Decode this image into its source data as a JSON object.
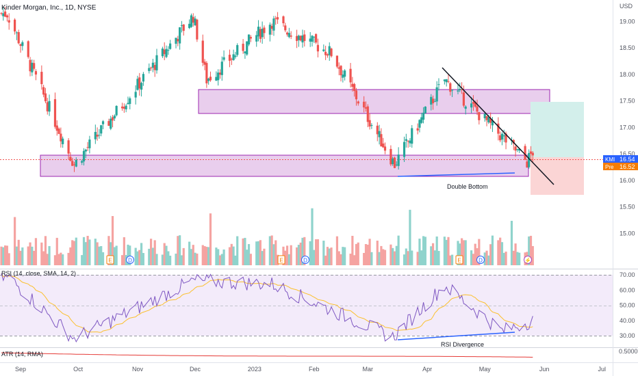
{
  "header": {
    "title": "Kinder Morgan, Inc., 1D, NYSE",
    "currency": "USD"
  },
  "price_badges": {
    "kmi_tag": "KMI",
    "kmi_value": "16.54",
    "pre_tag": "Pre",
    "pre_value": "16.52"
  },
  "annotations": {
    "double_bottom": "Double Bottom",
    "rsi_divergence": "RSI Divergence"
  },
  "rsi_panel": {
    "legend": "RSI (14, close, SMA, 14, 2)",
    "ticks": [
      "70.00",
      "60.00",
      "50.00",
      "40.00",
      "30.00"
    ]
  },
  "atr_panel": {
    "legend": "ATR (14, RMA)",
    "value_label": "0.5000"
  },
  "event_markers": [
    {
      "letter": "E",
      "type": "earnings"
    },
    {
      "letter": "D",
      "type": "dividend"
    },
    {
      "letter": "E",
      "type": "earnings"
    },
    {
      "letter": "D",
      "type": "dividend"
    },
    {
      "letter": "E",
      "type": "earnings"
    },
    {
      "letter": "D",
      "type": "dividend"
    },
    {
      "letter": "⚡",
      "type": "split"
    }
  ],
  "colors": {
    "up": "#26a69a",
    "down": "#ef5350",
    "volume_up": "#8fd3cc",
    "volume_down": "#f5a3a1",
    "zone_fill": "#e1bee7",
    "zone_border": "#9c27b0",
    "rsi_line": "#7e57c2",
    "rsi_ma": "#fbc02d",
    "rsi_band": "#f3ebfa",
    "atr_line": "#e53935",
    "trendline": "#131722",
    "annotation_line": "#2962ff",
    "target_fill": "#d3efeb",
    "stop_fill": "#fbd5d5"
  },
  "chart_data": {
    "type": "candlestick",
    "title": "Kinder Morgan, Inc., 1D, NYSE",
    "x_ticks": [
      "Sep",
      "Oct",
      "Nov",
      "Dec",
      "2023",
      "Feb",
      "Mar",
      "Apr",
      "May",
      "Jun",
      "Jul"
    ],
    "y_ticks": [
      "19.00",
      "18.50",
      "18.00",
      "17.50",
      "17.00",
      "16.50",
      "16.00",
      "15.50",
      "15.00"
    ],
    "ylim": [
      14.5,
      19.3
    ],
    "last_price": 16.54,
    "pre_market_price": 16.52,
    "support_zone": [
      16.25,
      16.6
    ],
    "resistance_zone": [
      17.35,
      17.8
    ],
    "trendline": [
      {
        "x": "2023-04-10",
        "y": 18.15
      },
      {
        "x": "2023-05-31",
        "y": 16.1
      }
    ],
    "double_bottom_line": [
      {
        "x": "2023-03-14",
        "y": 16.25
      },
      {
        "x": "2023-05-23",
        "y": 16.28
      }
    ],
    "position_entry": 16.55,
    "position_target": 17.55,
    "position_stop": 15.92,
    "key_closes": [
      {
        "date": "2022-08-25",
        "close": 19.15
      },
      {
        "date": "2022-09-29",
        "close": 16.3
      },
      {
        "date": "2022-11-30",
        "close": 19.1
      },
      {
        "date": "2022-12-07",
        "close": 17.9
      },
      {
        "date": "2023-01-10",
        "close": 19.0
      },
      {
        "date": "2023-02-10",
        "close": 18.4
      },
      {
        "date": "2023-03-15",
        "close": 16.3
      },
      {
        "date": "2023-04-10",
        "close": 17.9
      },
      {
        "date": "2023-05-23",
        "close": 16.35
      },
      {
        "date": "2023-05-26",
        "close": 16.54
      }
    ],
    "rsi": {
      "ylim": [
        25,
        72
      ],
      "ticks": [
        70,
        60,
        50,
        40,
        30
      ],
      "key_points": [
        {
          "date": "2022-08-26",
          "value": 68
        },
        {
          "date": "2022-09-29",
          "value": 28
        },
        {
          "date": "2022-11-30",
          "value": 66
        },
        {
          "date": "2023-01-10",
          "value": 64
        },
        {
          "date": "2023-03-14",
          "value": 29
        },
        {
          "date": "2023-04-10",
          "value": 63
        },
        {
          "date": "2023-05-10",
          "value": 33
        },
        {
          "date": "2023-05-26",
          "value": 40
        }
      ],
      "divergence_line": [
        {
          "x": "2023-03-14",
          "y": 29
        },
        {
          "x": "2023-05-23",
          "y": 33
        }
      ]
    },
    "atr": {
      "last_value_label": "0.5000"
    }
  }
}
